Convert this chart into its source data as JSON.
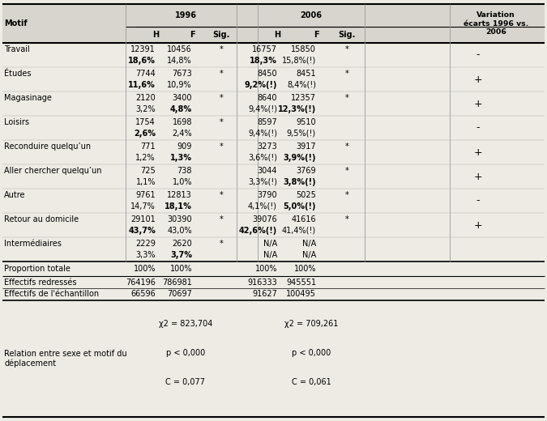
{
  "rows": [
    {
      "motif": "Travail",
      "h96": "12391",
      "f96": "10456",
      "sig96": "*",
      "h96p": "18,6%",
      "f96p": "14,8%",
      "h96p_bold": true,
      "f96p_bold": false,
      "h06": "16757",
      "f06": "15850",
      "sig06": "*",
      "h06p": "18,3%",
      "f06p": "15,8%(!)",
      "h06p_bold": true,
      "f06p_bold": false,
      "variation": "-"
    },
    {
      "motif": "Études",
      "h96": "7744",
      "f96": "7673",
      "sig96": "*",
      "h96p": "11,6%",
      "f96p": "10,9%",
      "h96p_bold": true,
      "f96p_bold": false,
      "h06": "8450",
      "f06": "8451",
      "sig06": "*",
      "h06p": "9,2%(!)",
      "f06p": "8,4%(!)",
      "h06p_bold": true,
      "f06p_bold": false,
      "variation": "+"
    },
    {
      "motif": "Magasinage",
      "h96": "2120",
      "f96": "3400",
      "sig96": "*",
      "h96p": "3,2%",
      "f96p": "4,8%",
      "h96p_bold": false,
      "f96p_bold": true,
      "h06": "8640",
      "f06": "12357",
      "sig06": "*",
      "h06p": "9,4%(!)",
      "f06p": "12,3%(!)",
      "h06p_bold": false,
      "f06p_bold": true,
      "variation": "+"
    },
    {
      "motif": "Loisirs",
      "h96": "1754",
      "f96": "1698",
      "sig96": "*",
      "h96p": "2,6%",
      "f96p": "2,4%",
      "h96p_bold": true,
      "f96p_bold": false,
      "h06": "8597",
      "f06": "9510",
      "sig06": "",
      "h06p": "9,4%(!)",
      "f06p": "9,5%(!)",
      "h06p_bold": false,
      "f06p_bold": false,
      "variation": "-"
    },
    {
      "motif": "Reconduire quelqu’un",
      "h96": "771",
      "f96": "909",
      "sig96": "*",
      "h96p": "1,2%",
      "f96p": "1,3%",
      "h96p_bold": false,
      "f96p_bold": true,
      "h06": "3273",
      "f06": "3917",
      "sig06": "*",
      "h06p": "3,6%(!)",
      "f06p": "3,9%(!)",
      "h06p_bold": false,
      "f06p_bold": true,
      "variation": "+"
    },
    {
      "motif": "Aller chercher quelqu’un",
      "h96": "725",
      "f96": "738",
      "sig96": "",
      "h96p": "1,1%",
      "f96p": "1,0%",
      "h96p_bold": false,
      "f96p_bold": false,
      "h06": "3044",
      "f06": "3769",
      "sig06": "*",
      "h06p": "3,3%(!)",
      "f06p": "3,8%(!)",
      "h06p_bold": false,
      "f06p_bold": true,
      "variation": "+"
    },
    {
      "motif": "Autre",
      "h96": "9761",
      "f96": "12813",
      "sig96": "*",
      "h96p": "14,7%",
      "f96p": "18,1%",
      "h96p_bold": false,
      "f96p_bold": true,
      "h06": "3790",
      "f06": "5025",
      "sig06": "*",
      "h06p": "4,1%(!)",
      "f06p": "5,0%(!)",
      "h06p_bold": false,
      "f06p_bold": true,
      "variation": "-"
    },
    {
      "motif": "Retour au domicile",
      "h96": "29101",
      "f96": "30390",
      "sig96": "*",
      "h96p": "43,7%",
      "f96p": "43,0%",
      "h96p_bold": true,
      "f96p_bold": false,
      "h06": "39076",
      "f06": "41616",
      "sig06": "*",
      "h06p": "42,6%(!)",
      "f06p": "41,4%(!)",
      "h06p_bold": true,
      "f06p_bold": false,
      "variation": "+"
    },
    {
      "motif": "Intermédiaires",
      "h96": "2229",
      "f96": "2620",
      "sig96": "*",
      "h96p": "3,3%",
      "f96p": "3,7%",
      "h96p_bold": false,
      "f96p_bold": true,
      "h06": "N/A",
      "f06": "N/A",
      "sig06": "",
      "h06p": "N/A",
      "f06p": "N/A",
      "h06p_bold": false,
      "f06p_bold": false,
      "variation": ""
    }
  ],
  "stats": {
    "chi2_1996": "χ2 = 823,704",
    "p_1996": "p < 0,000",
    "c_1996": "C = 0,077",
    "chi2_2006": "χ2 = 709,261",
    "p_2006": "p < 0,000",
    "c_2006": "C = 0,061"
  },
  "relation_label": "Relation entre sexe et motif du\ndéplacement",
  "bg_color": "#eeebe5",
  "header_bg": "#d8d5ce",
  "font_size": 7.0
}
